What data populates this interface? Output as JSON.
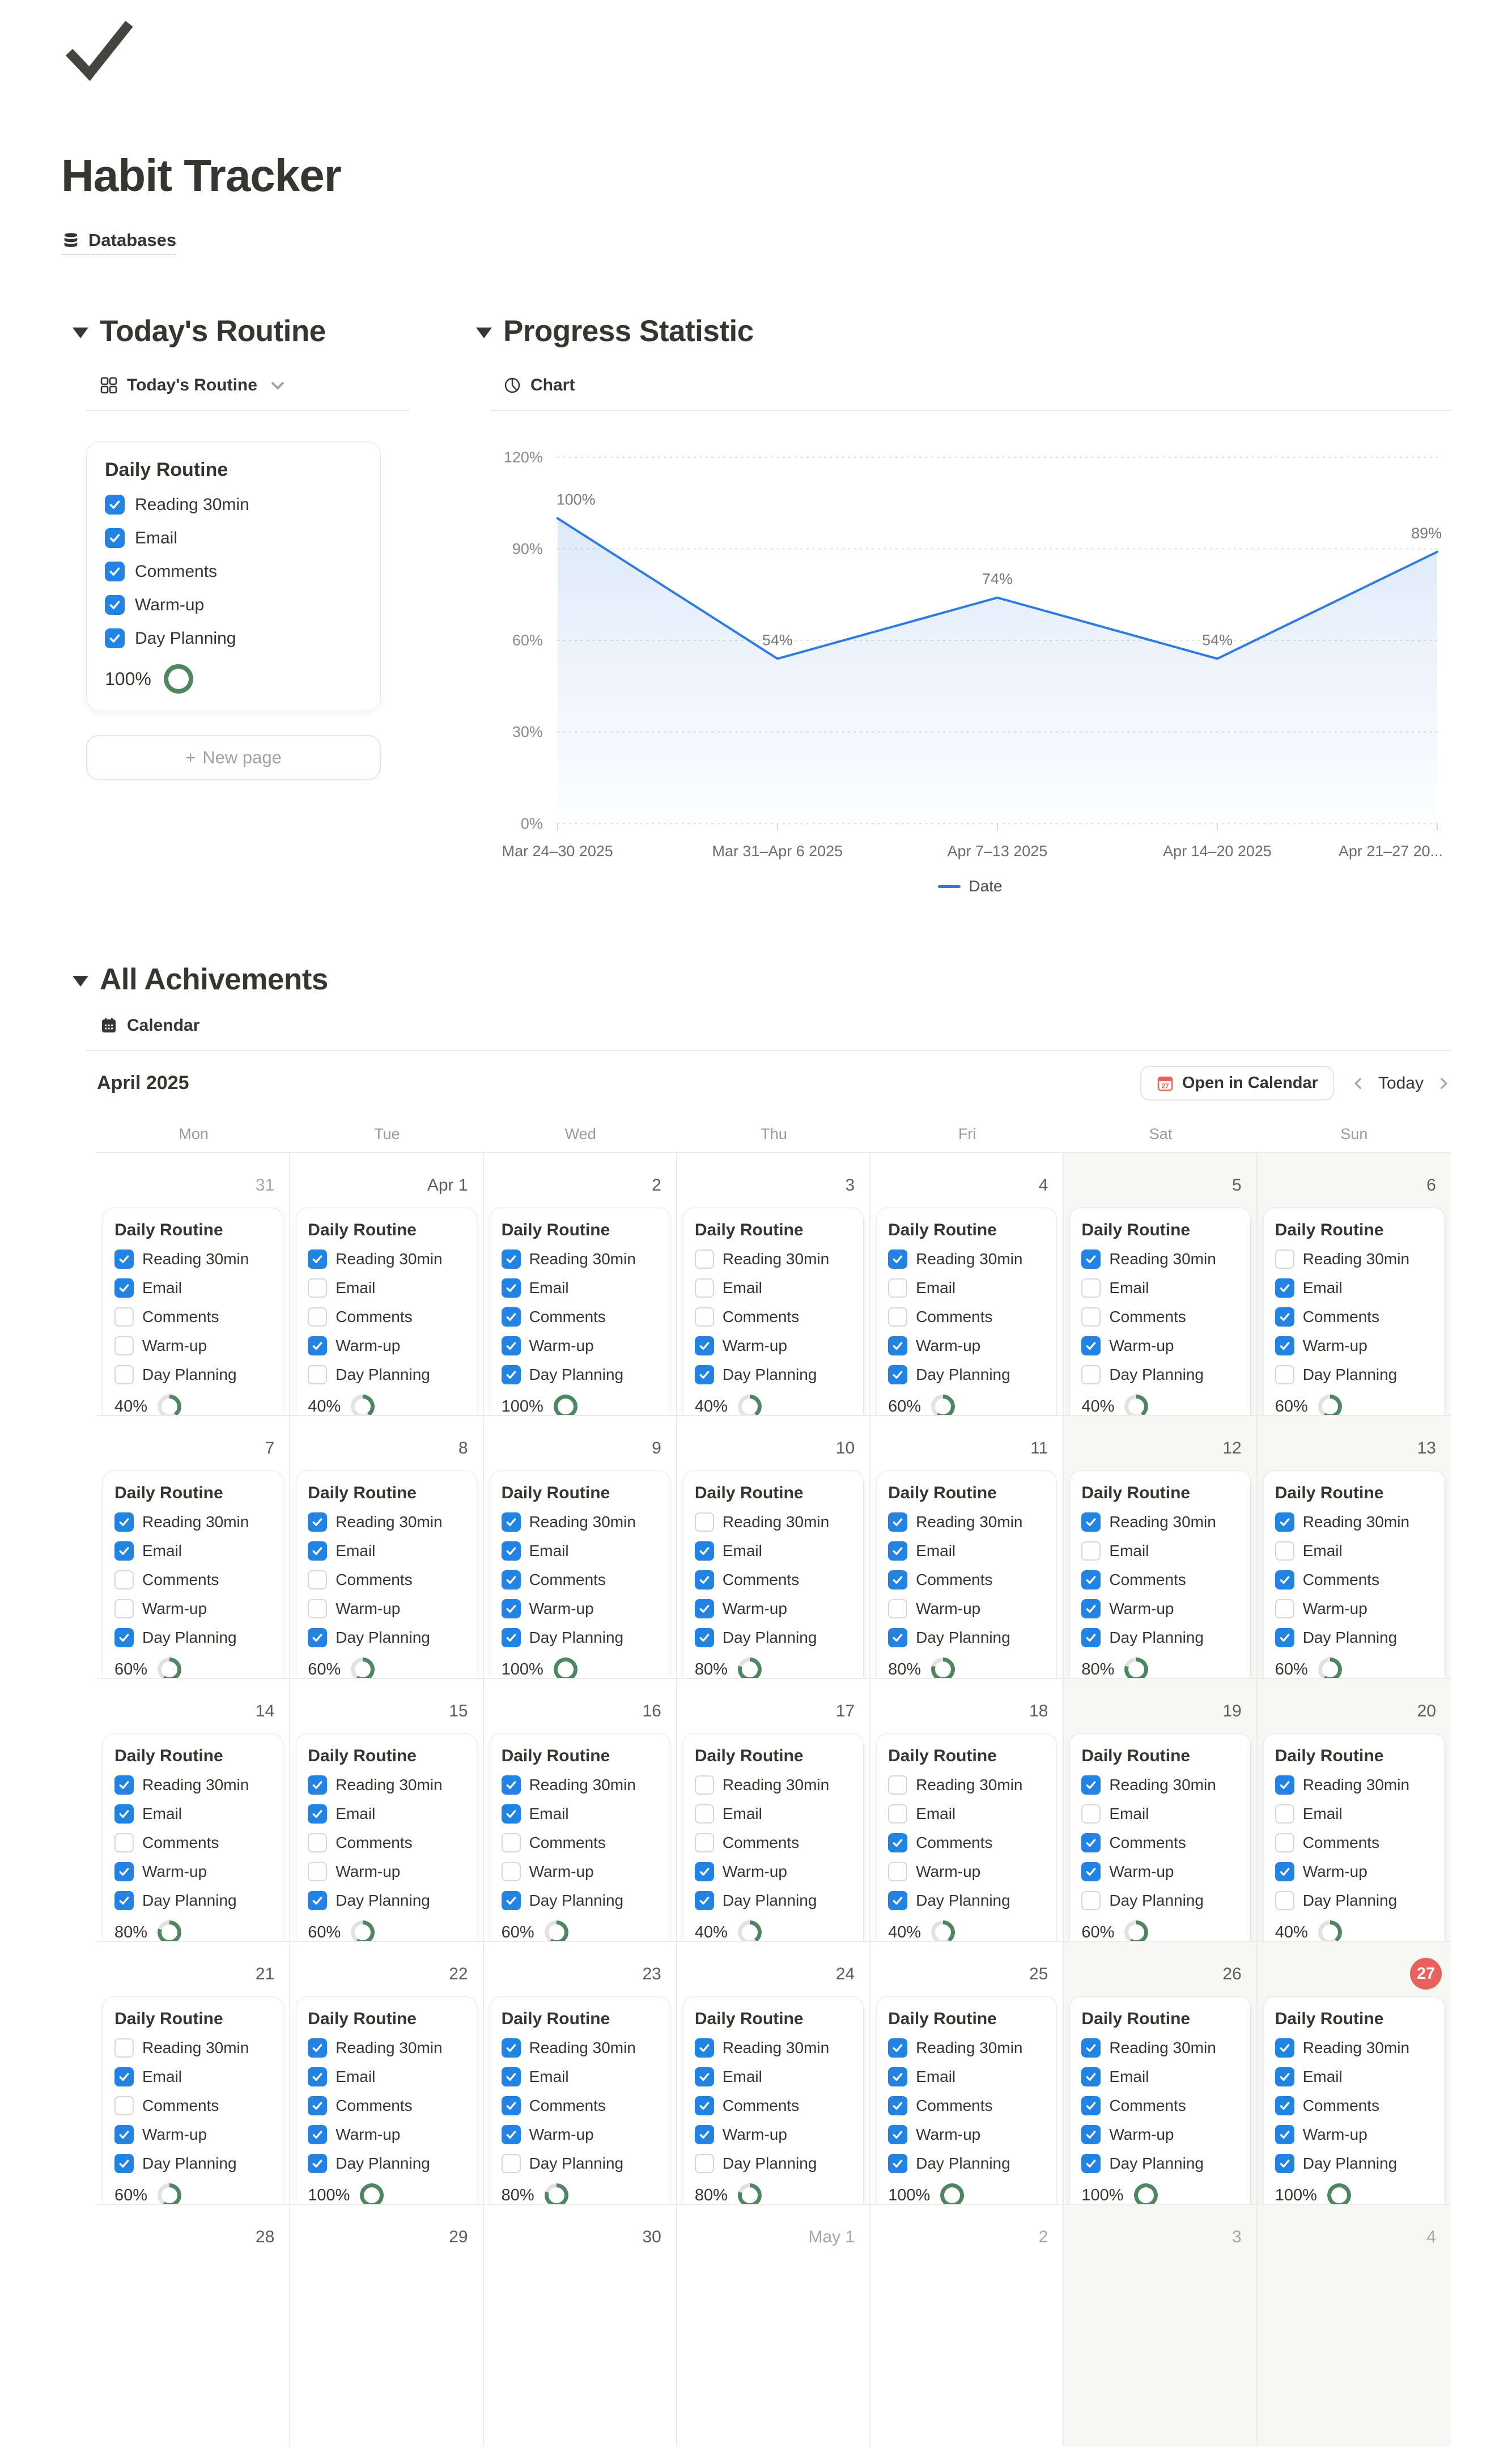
{
  "page": {
    "title": "Habit Tracker",
    "parent_label": "Databases",
    "icon": "checkmark-icon"
  },
  "colors": {
    "checkbox_blue": "#2383e2",
    "chart_blue": "#2e7cdf",
    "ring_green": "#4d8660",
    "ring_track": "#e3e2e0",
    "today_red": "#e8615a"
  },
  "todays_routine": {
    "section_title": "Today's Routine",
    "view_label": "Today's Routine",
    "card": {
      "title": "Daily Routine",
      "items": [
        {
          "label": "Reading 30min",
          "checked": true
        },
        {
          "label": "Email",
          "checked": true
        },
        {
          "label": "Comments",
          "checked": true
        },
        {
          "label": "Warm-up",
          "checked": true
        },
        {
          "label": "Day Planning",
          "checked": true
        }
      ],
      "percent": 100
    },
    "new_page_label": "New page",
    "new_page_plus": "+"
  },
  "progress": {
    "section_title": "Progress Statistic",
    "view_label": "Chart",
    "chart_data": {
      "type": "line",
      "x": [
        "Mar 24–30 2025",
        "Mar 31–Apr 6 2025",
        "Apr 7–13 2025",
        "Apr 14–20 2025",
        "Apr 21–27 20..."
      ],
      "series": [
        {
          "name": "Date",
          "values": [
            100,
            54,
            74,
            54,
            89
          ]
        }
      ],
      "point_labels": [
        "100%",
        "54%",
        "74%",
        "54%",
        "89%"
      ],
      "y_ticks": [
        0,
        30,
        60,
        90,
        120
      ],
      "ylim": [
        0,
        120
      ],
      "xlabel": "",
      "ylabel": "",
      "grid": "dotted-horizontal",
      "legend": "Date",
      "legend_position": "bottom-center",
      "area_fill": true
    }
  },
  "achievements": {
    "section_title": "All Achivements",
    "view_label": "Calendar",
    "toolbar": {
      "month_label": "April 2025",
      "open_button": "Open in Calendar",
      "today_button": "Today"
    },
    "day_headers": [
      "Mon",
      "Tue",
      "Wed",
      "Thu",
      "Fri",
      "Sat",
      "Sun"
    ],
    "card_title": "Daily Routine",
    "checklist_labels": [
      "Reading 30min",
      "Email",
      "Comments",
      "Warm-up",
      "Day Planning"
    ],
    "weeks": [
      [
        {
          "day": "31",
          "muted": true,
          "checks": [
            1,
            1,
            0,
            0,
            0
          ],
          "percent": 40
        },
        {
          "day": "Apr 1",
          "checks": [
            1,
            0,
            0,
            1,
            0
          ],
          "percent": 40
        },
        {
          "day": "2",
          "checks": [
            1,
            1,
            1,
            1,
            1
          ],
          "percent": 100
        },
        {
          "day": "3",
          "checks": [
            0,
            0,
            0,
            1,
            1
          ],
          "percent": 40
        },
        {
          "day": "4",
          "checks": [
            1,
            0,
            0,
            1,
            1
          ],
          "percent": 60
        },
        {
          "day": "5",
          "checks": [
            1,
            0,
            0,
            1,
            0
          ],
          "percent": 40
        },
        {
          "day": "6",
          "checks": [
            0,
            1,
            1,
            1,
            0
          ],
          "percent": 60
        }
      ],
      [
        {
          "day": "7",
          "checks": [
            1,
            1,
            0,
            0,
            1
          ],
          "percent": 60
        },
        {
          "day": "8",
          "checks": [
            1,
            1,
            0,
            0,
            1
          ],
          "percent": 60
        },
        {
          "day": "9",
          "checks": [
            1,
            1,
            1,
            1,
            1
          ],
          "percent": 100
        },
        {
          "day": "10",
          "checks": [
            0,
            1,
            1,
            1,
            1
          ],
          "percent": 80
        },
        {
          "day": "11",
          "checks": [
            1,
            1,
            1,
            0,
            1
          ],
          "percent": 80
        },
        {
          "day": "12",
          "checks": [
            1,
            0,
            1,
            1,
            1
          ],
          "percent": 80
        },
        {
          "day": "13",
          "checks": [
            1,
            0,
            1,
            0,
            1
          ],
          "percent": 60
        }
      ],
      [
        {
          "day": "14",
          "checks": [
            1,
            1,
            0,
            1,
            1
          ],
          "percent": 80
        },
        {
          "day": "15",
          "checks": [
            1,
            1,
            0,
            0,
            1
          ],
          "percent": 60
        },
        {
          "day": "16",
          "checks": [
            1,
            1,
            0,
            0,
            1
          ],
          "percent": 60
        },
        {
          "day": "17",
          "checks": [
            0,
            0,
            0,
            1,
            1
          ],
          "percent": 40
        },
        {
          "day": "18",
          "checks": [
            0,
            0,
            1,
            0,
            1
          ],
          "percent": 40
        },
        {
          "day": "19",
          "checks": [
            1,
            0,
            1,
            1,
            0
          ],
          "percent": 60
        },
        {
          "day": "20",
          "checks": [
            1,
            0,
            0,
            1,
            0
          ],
          "percent": 40
        }
      ],
      [
        {
          "day": "21",
          "checks": [
            0,
            1,
            0,
            1,
            1
          ],
          "percent": 60
        },
        {
          "day": "22",
          "checks": [
            1,
            1,
            1,
            1,
            1
          ],
          "percent": 100
        },
        {
          "day": "23",
          "checks": [
            1,
            1,
            1,
            1,
            0
          ],
          "percent": 80
        },
        {
          "day": "24",
          "checks": [
            1,
            1,
            1,
            1,
            0
          ],
          "percent": 80
        },
        {
          "day": "25",
          "checks": [
            1,
            1,
            1,
            1,
            1
          ],
          "percent": 100
        },
        {
          "day": "26",
          "checks": [
            1,
            1,
            1,
            1,
            1
          ],
          "percent": 100
        },
        {
          "day": "27",
          "today": true,
          "checks": [
            1,
            1,
            1,
            1,
            1
          ],
          "percent": 100
        }
      ],
      [
        {
          "day": "28"
        },
        {
          "day": "29"
        },
        {
          "day": "30"
        },
        {
          "day": "May 1",
          "muted": true
        },
        {
          "day": "2",
          "muted": true
        },
        {
          "day": "3",
          "muted": true
        },
        {
          "day": "4",
          "muted": true
        }
      ]
    ]
  }
}
